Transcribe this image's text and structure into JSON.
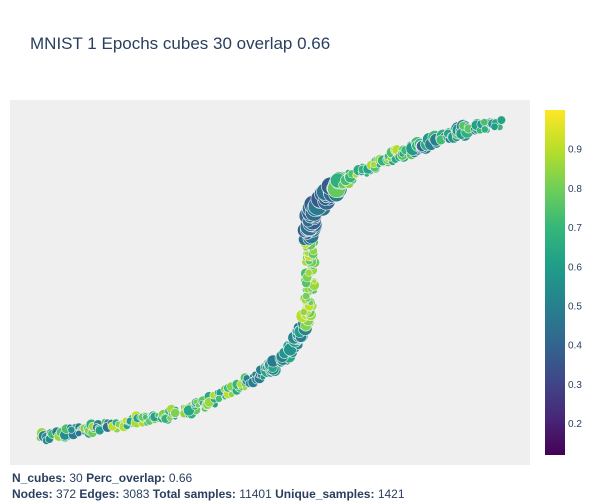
{
  "chart_data": {
    "type": "scatter",
    "title": "MNIST 1 Epochs cubes 30 overlap 0.66",
    "colorbar": {
      "colorscale": "Viridis",
      "range": [
        0.12,
        1.0
      ],
      "ticks": [
        0.2,
        0.3,
        0.4,
        0.5,
        0.6,
        0.7,
        0.8,
        0.9
      ]
    },
    "background": "#efefef",
    "edge_color": "#b0b0b0",
    "node_outline": "#f0f0f0",
    "graph": "mapper graph of nodes sized by membership and colored by value, laid out along an S-shaped curve; axes hidden"
  },
  "stats": {
    "n_cubes_label": "N_cubes:",
    "n_cubes_value": "30",
    "perc_overlap_label": "Perc_overlap:",
    "perc_overlap_value": "0.66",
    "nodes_label": "Nodes:",
    "nodes_value": "372",
    "edges_label": "Edges:",
    "edges_value": "3083",
    "total_samples_label": "Total samples:",
    "total_samples_value": "11401",
    "unique_samples_label": "Unique_samples:",
    "unique_samples_value": "1421"
  }
}
